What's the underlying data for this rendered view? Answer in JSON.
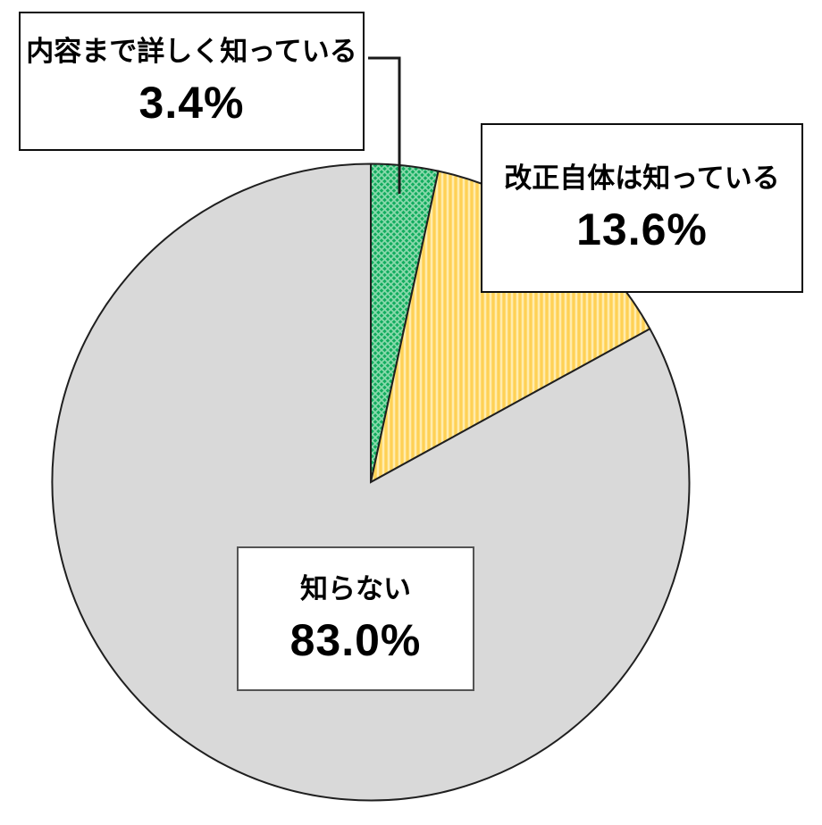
{
  "chart_data": {
    "type": "pie",
    "title": "",
    "unit": "%",
    "direction": "clockwise",
    "start_angle_deg": 0,
    "legend_position": "none",
    "outline_color": "#1f1f1f",
    "background_color": "#ffffff",
    "slices": [
      {
        "label": "内容まで詳しく知っている",
        "value": 3.4,
        "display": "3.4%",
        "fill": "#12AD5F",
        "pattern": "diagonal-crosshatch",
        "pattern_color": "#8AD9AC"
      },
      {
        "label": "改正自体は知っている",
        "value": 13.6,
        "display": "13.6%",
        "fill": "#FFD155",
        "pattern": "vertical-stripes",
        "pattern_color": "#FFECAE"
      },
      {
        "label": "知らない",
        "value": 83.0,
        "display": "83.0%",
        "fill": "#D9D9D9",
        "pattern": "solid",
        "pattern_color": "#D9D9D9"
      }
    ]
  }
}
